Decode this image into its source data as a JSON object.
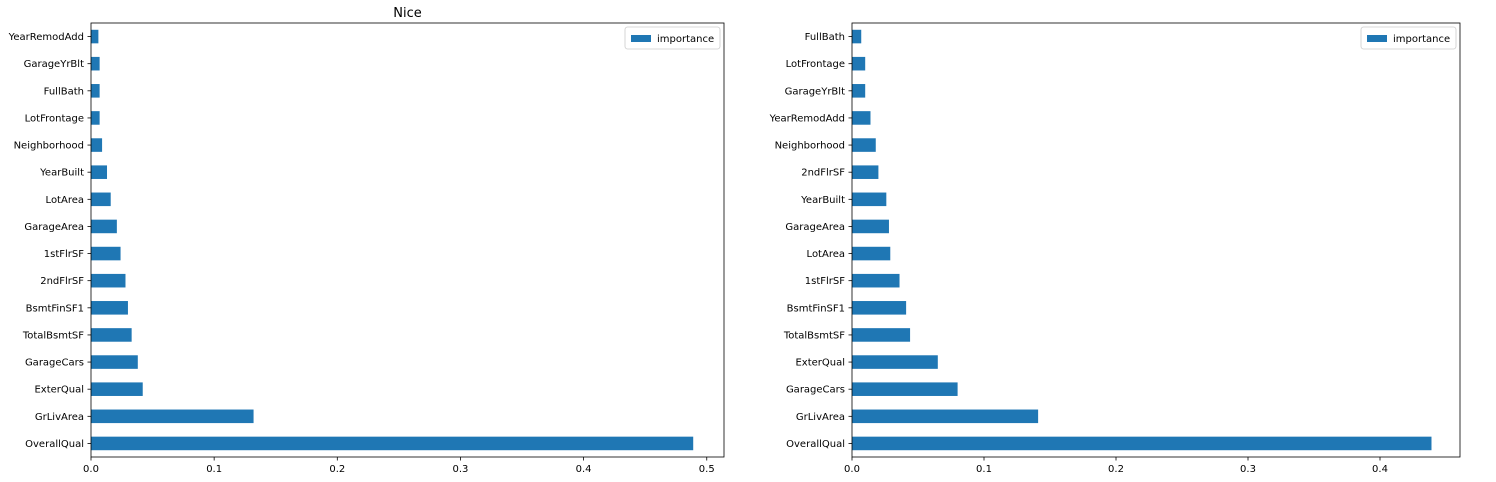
{
  "chart_data": [
    {
      "type": "bar",
      "orientation": "horizontal",
      "title": "Nice",
      "xlabel": "",
      "ylabel": "",
      "categories": [
        "OverallQual",
        "GrLivArea",
        "ExterQual",
        "GarageCars",
        "TotalBsmtSF",
        "BsmtFinSF1",
        "2ndFlrSF",
        "1stFlrSF",
        "GarageArea",
        "LotArea",
        "YearBuilt",
        "Neighborhood",
        "LotFrontage",
        "FullBath",
        "GarageYrBlt",
        "YearRemodAdd"
      ],
      "series": [
        {
          "name": "importance",
          "values": [
            0.489,
            0.132,
            0.042,
            0.038,
            0.033,
            0.03,
            0.028,
            0.024,
            0.021,
            0.016,
            0.013,
            0.009,
            0.007,
            0.007,
            0.007,
            0.006
          ]
        }
      ],
      "xlim": [
        0,
        0.514
      ],
      "xticks": [
        0.0,
        0.1,
        0.2,
        0.3,
        0.4,
        0.5
      ],
      "xtick_labels": [
        "0.0",
        "0.1",
        "0.2",
        "0.3",
        "0.4",
        "0.5"
      ],
      "color": "#1f77b4",
      "grid": false,
      "legend": "top-right"
    },
    {
      "type": "bar",
      "orientation": "horizontal",
      "title": "",
      "xlabel": "",
      "ylabel": "",
      "categories": [
        "OverallQual",
        "GrLivArea",
        "GarageCars",
        "ExterQual",
        "TotalBsmtSF",
        "BsmtFinSF1",
        "1stFlrSF",
        "LotArea",
        "GarageArea",
        "YearBuilt",
        "2ndFlrSF",
        "Neighborhood",
        "YearRemodAdd",
        "GarageYrBlt",
        "LotFrontage",
        "FullBath"
      ],
      "series": [
        {
          "name": "importance",
          "values": [
            0.439,
            0.141,
            0.08,
            0.065,
            0.044,
            0.041,
            0.036,
            0.029,
            0.028,
            0.026,
            0.02,
            0.018,
            0.014,
            0.01,
            0.01,
            0.007
          ]
        }
      ],
      "xlim": [
        0,
        0.4606
      ],
      "xticks": [
        0.0,
        0.1,
        0.2,
        0.3,
        0.4
      ],
      "xtick_labels": [
        "0.0",
        "0.1",
        "0.2",
        "0.3",
        "0.4"
      ],
      "color": "#1f77b4",
      "grid": false,
      "legend": "top-right"
    }
  ]
}
